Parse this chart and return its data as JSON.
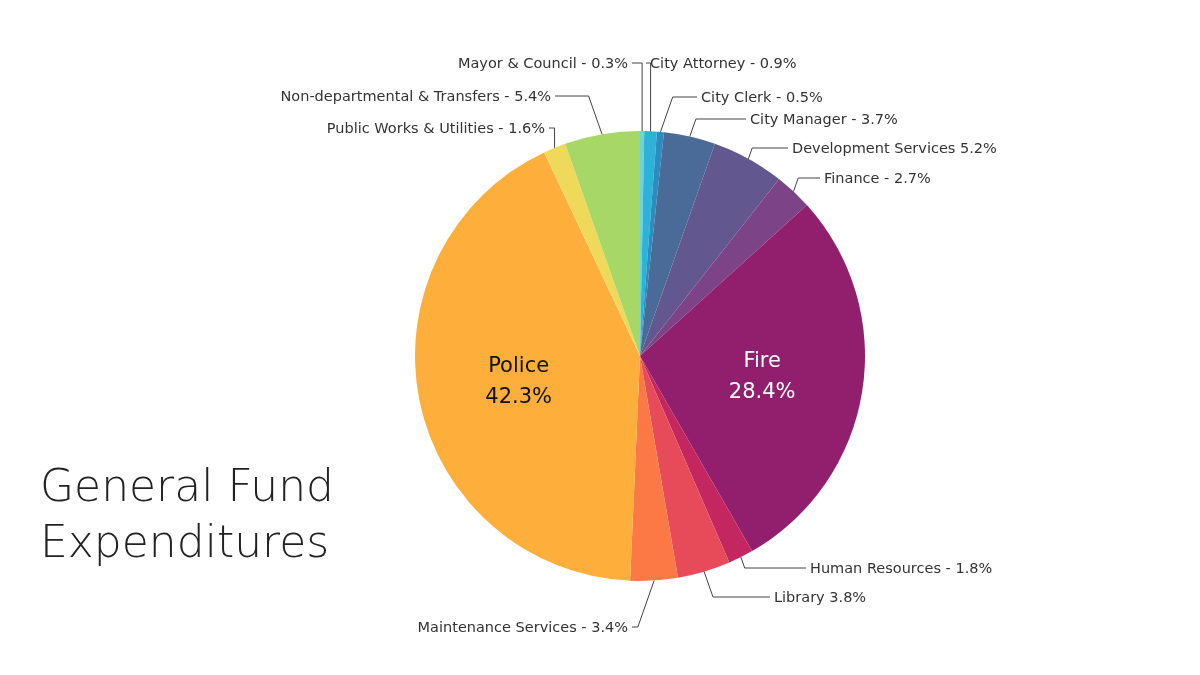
{
  "chart_data": {
    "type": "pie",
    "title": "General Fund Expenditures",
    "categories": [
      "Mayor & Council -",
      "City Attorney -",
      "City Clerk -",
      "City Manager -",
      "Development Services",
      "Finance -",
      "Fire",
      "Human Resources -",
      "Library",
      "Maintenance Services -",
      "Police",
      "Public Works & Utilities -",
      "Non-departmental & Transfers -"
    ],
    "values": [
      0.3,
      0.9,
      0.5,
      3.7,
      5.2,
      2.7,
      28.4,
      1.8,
      3.8,
      3.4,
      42.3,
      1.6,
      5.4
    ],
    "value_labels": [
      "0.3%",
      "0.9%",
      "0.5%",
      "3.7%",
      "5.2%",
      "2.7%",
      "28.4%",
      "1.8%",
      "3.8%",
      "3.4%",
      "42.3%",
      "1.6%",
      "5.4%"
    ],
    "colors": [
      "#6fd3dc",
      "#2eb2d8",
      "#2a8cbf",
      "#4a6b98",
      "#62588f",
      "#7c4486",
      "#911f6e",
      "#c4265f",
      "#e74b5a",
      "#fc7945",
      "#fdae3b",
      "#efd95a",
      "#a7d867"
    ]
  }
}
